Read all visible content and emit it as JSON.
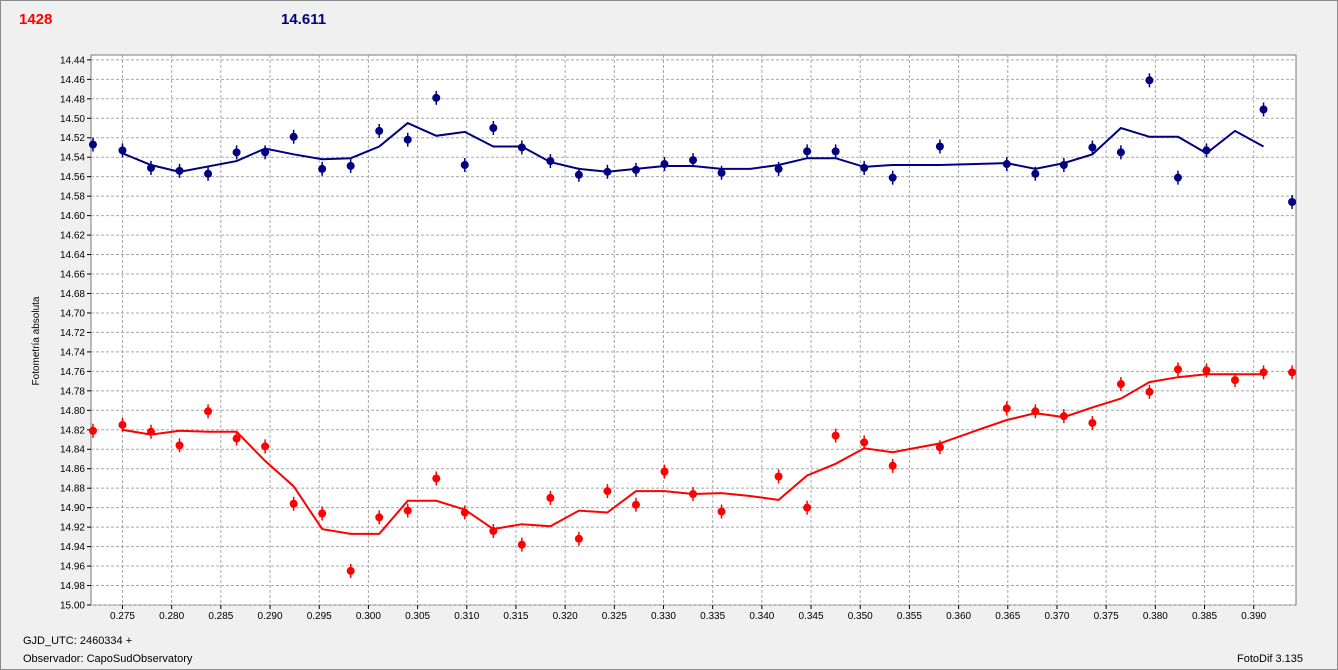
{
  "header": {
    "left_value": "1428",
    "right_value": "14.611"
  },
  "footer": {
    "gjd": "GJD_UTC: 2460334 +",
    "observer": "Observador: CapoSudObservatory",
    "version": "FotoDif 3.135"
  },
  "colors": {
    "red_series": "#ff0000",
    "blue_series": "#000080",
    "grid": "#a8a8a8",
    "plot_bg": "#ffffff"
  },
  "chart_data": {
    "type": "scatter",
    "ylabel": "Fotometría absoluta",
    "xlabel": "",
    "xlim": [
      0.2718,
      0.3943
    ],
    "ylim": [
      15.0,
      14.435
    ],
    "y_inverted": true,
    "grid": true,
    "xticks": [
      "0.275",
      "0.280",
      "0.285",
      "0.290",
      "0.295",
      "0.300",
      "0.305",
      "0.310",
      "0.315",
      "0.320",
      "0.325",
      "0.330",
      "0.335",
      "0.340",
      "0.345",
      "0.350",
      "0.355",
      "0.360",
      "0.365",
      "0.370",
      "0.375",
      "0.380",
      "0.385",
      "0.390"
    ],
    "yticks": [
      "14.44",
      "14.46",
      "14.48",
      "14.50",
      "14.52",
      "14.54",
      "14.56",
      "14.58",
      "14.60",
      "14.62",
      "14.64",
      "14.66",
      "14.68",
      "14.70",
      "14.72",
      "14.74",
      "14.76",
      "14.78",
      "14.80",
      "14.82",
      "14.84",
      "14.86",
      "14.88",
      "14.90",
      "14.92",
      "14.94",
      "14.96",
      "14.98",
      "15.00"
    ],
    "series": [
      {
        "color": "#000080",
        "points": [
          [
            0.272,
            14.527
          ],
          [
            0.275,
            14.533
          ],
          [
            0.2779,
            14.551
          ],
          [
            0.2808,
            14.554
          ],
          [
            0.2837,
            14.557
          ],
          [
            0.2866,
            14.535
          ],
          [
            0.2895,
            14.535
          ],
          [
            0.2924,
            14.519
          ],
          [
            0.2953,
            14.552
          ],
          [
            0.2982,
            14.549
          ],
          [
            0.3011,
            14.513
          ],
          [
            0.304,
            14.522
          ],
          [
            0.3069,
            14.479
          ],
          [
            0.3098,
            14.548
          ],
          [
            0.3127,
            14.51
          ],
          [
            0.3156,
            14.53
          ],
          [
            0.3185,
            14.544
          ],
          [
            0.3214,
            14.558
          ],
          [
            0.3243,
            14.555
          ],
          [
            0.3272,
            14.553
          ],
          [
            0.3301,
            14.547
          ],
          [
            0.333,
            14.543
          ],
          [
            0.3359,
            14.556
          ],
          [
            0.3417,
            14.552
          ],
          [
            0.3446,
            14.534
          ],
          [
            0.3475,
            14.534
          ],
          [
            0.3504,
            14.551
          ],
          [
            0.3533,
            14.561
          ],
          [
            0.3581,
            14.529
          ],
          [
            0.3649,
            14.547
          ],
          [
            0.3678,
            14.557
          ],
          [
            0.3707,
            14.548
          ],
          [
            0.3736,
            14.53
          ],
          [
            0.3765,
            14.535
          ],
          [
            0.3794,
            14.461
          ],
          [
            0.3823,
            14.561
          ],
          [
            0.3852,
            14.533
          ],
          [
            0.391,
            14.491
          ],
          [
            0.3939,
            14.586
          ]
        ],
        "fit": [
          [
            0.275,
            14.536
          ],
          [
            0.2779,
            14.548
          ],
          [
            0.2808,
            14.555
          ],
          [
            0.2866,
            14.544
          ],
          [
            0.2895,
            14.531
          ],
          [
            0.2924,
            14.537
          ],
          [
            0.2953,
            14.542
          ],
          [
            0.2982,
            14.541
          ],
          [
            0.3011,
            14.529
          ],
          [
            0.304,
            14.505
          ],
          [
            0.3069,
            14.518
          ],
          [
            0.3098,
            14.514
          ],
          [
            0.3127,
            14.529
          ],
          [
            0.3156,
            14.529
          ],
          [
            0.3185,
            14.545
          ],
          [
            0.3214,
            14.552
          ],
          [
            0.3243,
            14.555
          ],
          [
            0.3272,
            14.552
          ],
          [
            0.3301,
            14.549
          ],
          [
            0.333,
            14.549
          ],
          [
            0.3359,
            14.552
          ],
          [
            0.3388,
            14.552
          ],
          [
            0.3417,
            14.548
          ],
          [
            0.3446,
            14.541
          ],
          [
            0.3475,
            14.541
          ],
          [
            0.3504,
            14.55
          ],
          [
            0.3533,
            14.548
          ],
          [
            0.3581,
            14.548
          ],
          [
            0.3649,
            14.546
          ],
          [
            0.3678,
            14.552
          ],
          [
            0.3707,
            14.546
          ],
          [
            0.3736,
            14.537
          ],
          [
            0.3765,
            14.51
          ],
          [
            0.3794,
            14.519
          ],
          [
            0.3823,
            14.519
          ],
          [
            0.3852,
            14.536
          ],
          [
            0.3881,
            14.513
          ],
          [
            0.391,
            14.529
          ]
        ]
      },
      {
        "color": "#ff0000",
        "points": [
          [
            0.272,
            14.821
          ],
          [
            0.275,
            14.815
          ],
          [
            0.2779,
            14.822
          ],
          [
            0.2808,
            14.836
          ],
          [
            0.2837,
            14.801
          ],
          [
            0.2866,
            14.829
          ],
          [
            0.2895,
            14.837
          ],
          [
            0.2924,
            14.896
          ],
          [
            0.2953,
            14.906
          ],
          [
            0.2982,
            14.965
          ],
          [
            0.3011,
            14.91
          ],
          [
            0.304,
            14.903
          ],
          [
            0.3069,
            14.87
          ],
          [
            0.3098,
            14.905
          ],
          [
            0.3127,
            14.924
          ],
          [
            0.3156,
            14.938
          ],
          [
            0.3185,
            14.89
          ],
          [
            0.3214,
            14.932
          ],
          [
            0.3243,
            14.883
          ],
          [
            0.3272,
            14.897
          ],
          [
            0.3301,
            14.863
          ],
          [
            0.333,
            14.886
          ],
          [
            0.3359,
            14.904
          ],
          [
            0.3417,
            14.868
          ],
          [
            0.3446,
            14.9
          ],
          [
            0.3475,
            14.826
          ],
          [
            0.3504,
            14.833
          ],
          [
            0.3533,
            14.857
          ],
          [
            0.3581,
            14.838
          ],
          [
            0.3649,
            14.798
          ],
          [
            0.3678,
            14.801
          ],
          [
            0.3707,
            14.806
          ],
          [
            0.3736,
            14.813
          ],
          [
            0.3765,
            14.773
          ],
          [
            0.3794,
            14.781
          ],
          [
            0.3823,
            14.758
          ],
          [
            0.3852,
            14.759
          ],
          [
            0.3881,
            14.769
          ],
          [
            0.391,
            14.761
          ],
          [
            0.3939,
            14.761
          ]
        ],
        "fit": [
          [
            0.275,
            14.82
          ],
          [
            0.2779,
            14.825
          ],
          [
            0.2808,
            14.821
          ],
          [
            0.2837,
            14.822
          ],
          [
            0.2866,
            14.822
          ],
          [
            0.2895,
            14.852
          ],
          [
            0.2924,
            14.878
          ],
          [
            0.2953,
            14.922
          ],
          [
            0.2982,
            14.927
          ],
          [
            0.3011,
            14.927
          ],
          [
            0.304,
            14.893
          ],
          [
            0.3069,
            14.893
          ],
          [
            0.3098,
            14.902
          ],
          [
            0.3127,
            14.922
          ],
          [
            0.3156,
            14.917
          ],
          [
            0.3185,
            14.919
          ],
          [
            0.3214,
            14.903
          ],
          [
            0.3243,
            14.905
          ],
          [
            0.3272,
            14.883
          ],
          [
            0.3301,
            14.883
          ],
          [
            0.333,
            14.886
          ],
          [
            0.3359,
            14.885
          ],
          [
            0.3388,
            14.888
          ],
          [
            0.3417,
            14.892
          ],
          [
            0.3446,
            14.867
          ],
          [
            0.3475,
            14.855
          ],
          [
            0.3504,
            14.839
          ],
          [
            0.3533,
            14.843
          ],
          [
            0.3581,
            14.834
          ],
          [
            0.362,
            14.82
          ],
          [
            0.3649,
            14.81
          ],
          [
            0.3678,
            14.803
          ],
          [
            0.3707,
            14.807
          ],
          [
            0.3736,
            14.797
          ],
          [
            0.3765,
            14.788
          ],
          [
            0.3794,
            14.771
          ],
          [
            0.3823,
            14.766
          ],
          [
            0.3852,
            14.763
          ],
          [
            0.3881,
            14.763
          ],
          [
            0.391,
            14.763
          ]
        ]
      }
    ]
  }
}
